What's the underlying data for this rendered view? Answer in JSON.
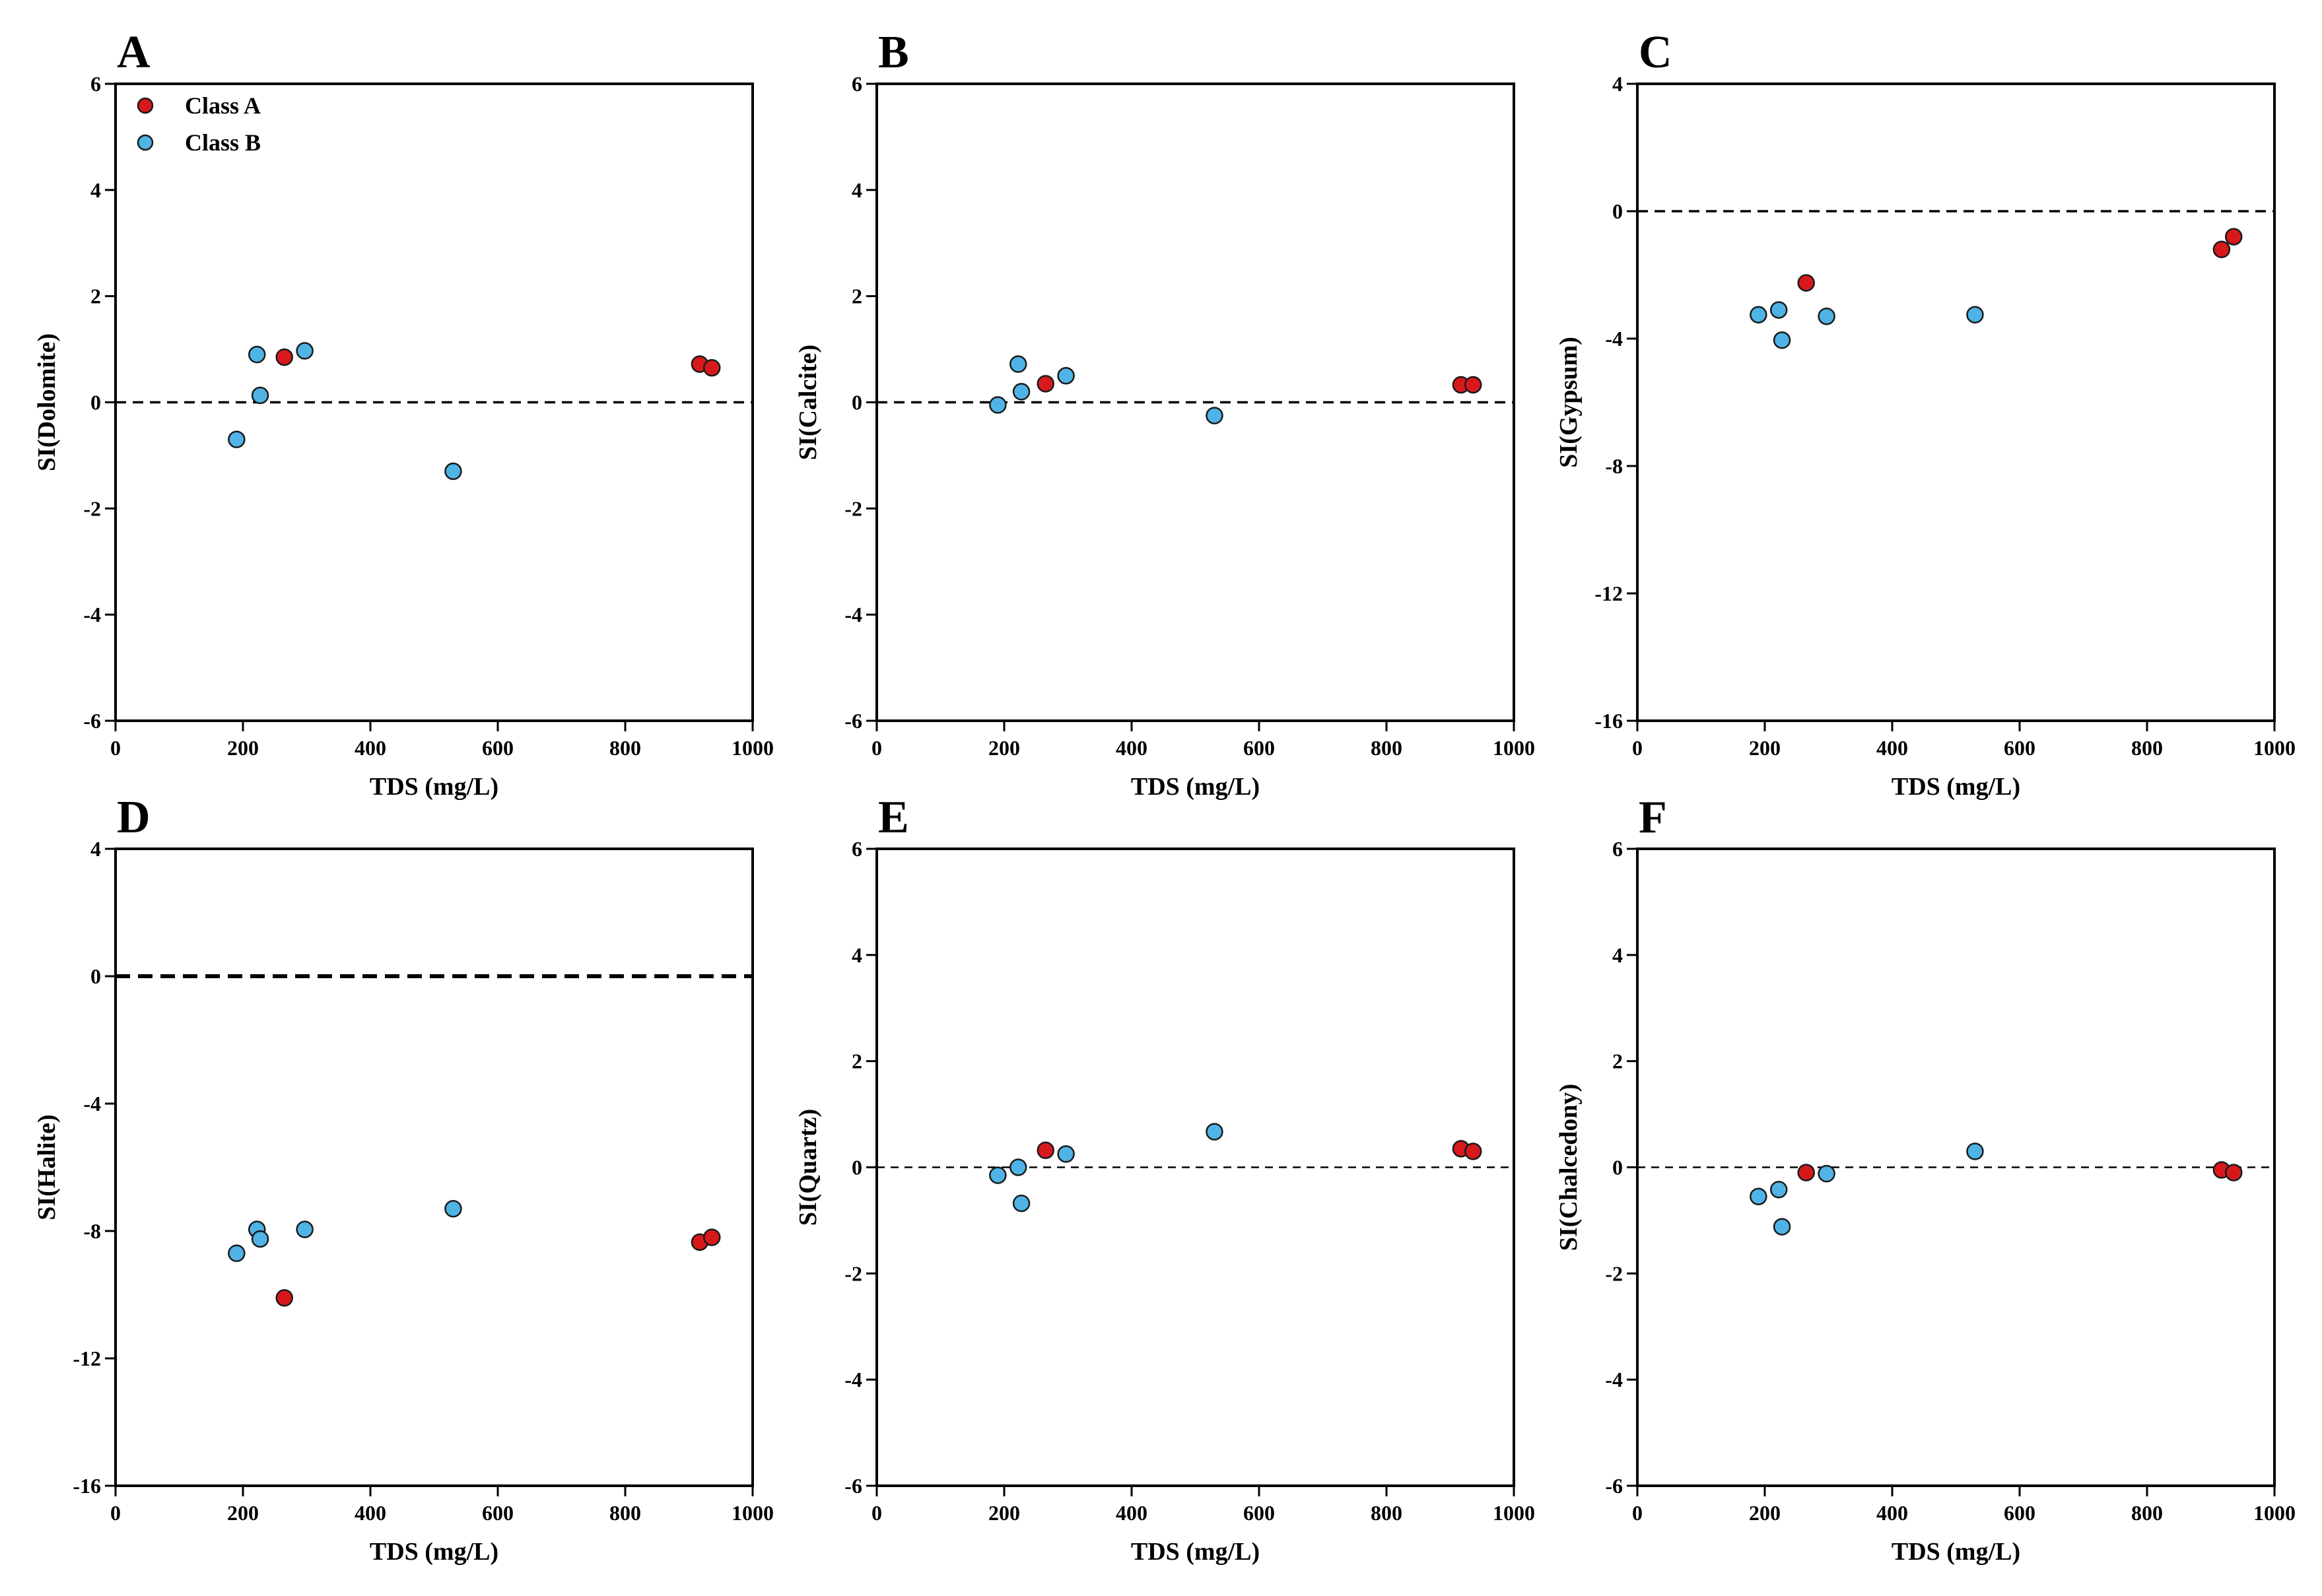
{
  "colors": {
    "class_a": "#d7191c",
    "class_b": "#4fb3e6",
    "axis": "#000000"
  },
  "legend": [
    {
      "label": "Class A",
      "color": "#d7191c"
    },
    {
      "label": "Class B",
      "color": "#4fb3e6"
    }
  ],
  "chart_data": [
    {
      "panel": "A",
      "type": "scatter",
      "xlabel": "TDS (mg/L)",
      "ylabel": "SI(Dolomite)",
      "xlim": [
        0,
        1000
      ],
      "ylim": [
        -6,
        6
      ],
      "xticks": [
        0,
        200,
        400,
        600,
        800,
        1000
      ],
      "yticks": [
        -6,
        -4,
        -2,
        0,
        2,
        4,
        6
      ],
      "reference_line": 0,
      "legend": true,
      "series": [
        {
          "name": "Class A",
          "x": [
            265,
            917,
            936
          ],
          "y": [
            0.85,
            0.72,
            0.65
          ]
        },
        {
          "name": "Class B",
          "x": [
            190,
            222,
            227,
            297,
            530
          ],
          "y": [
            -0.7,
            0.9,
            0.13,
            0.97,
            -1.3
          ]
        }
      ]
    },
    {
      "panel": "B",
      "type": "scatter",
      "xlabel": "TDS (mg/L)",
      "ylabel": "SI(Calcite)",
      "xlim": [
        0,
        1000
      ],
      "ylim": [
        -6,
        6
      ],
      "xticks": [
        0,
        200,
        400,
        600,
        800,
        1000
      ],
      "yticks": [
        -6,
        -4,
        -2,
        0,
        2,
        4,
        6
      ],
      "reference_line": 0,
      "legend": false,
      "series": [
        {
          "name": "Class A",
          "x": [
            265,
            917,
            936
          ],
          "y": [
            0.35,
            0.33,
            0.33
          ]
        },
        {
          "name": "Class B",
          "x": [
            190,
            222,
            227,
            297,
            530
          ],
          "y": [
            -0.05,
            0.72,
            0.2,
            0.5,
            -0.25
          ]
        }
      ]
    },
    {
      "panel": "C",
      "type": "scatter",
      "xlabel": "TDS (mg/L)",
      "ylabel": "SI(Gypsum)",
      "xlim": [
        0,
        1000
      ],
      "ylim": [
        -16,
        4
      ],
      "xticks": [
        0,
        200,
        400,
        600,
        800,
        1000
      ],
      "yticks": [
        -16,
        -12,
        -8,
        -4,
        0,
        4
      ],
      "reference_line": 0,
      "legend": false,
      "series": [
        {
          "name": "Class A",
          "x": [
            265,
            917,
            936
          ],
          "y": [
            -2.25,
            -1.2,
            -0.8
          ]
        },
        {
          "name": "Class B",
          "x": [
            190,
            222,
            227,
            297,
            530
          ],
          "y": [
            -3.25,
            -3.1,
            -4.05,
            -3.3,
            -3.25
          ]
        }
      ]
    },
    {
      "panel": "D",
      "type": "scatter",
      "xlabel": "TDS (mg/L)",
      "ylabel": "SI(Halite)",
      "xlim": [
        0,
        1000
      ],
      "ylim": [
        -16,
        4
      ],
      "xticks": [
        0,
        200,
        400,
        600,
        800,
        1000
      ],
      "yticks": [
        -16,
        -12,
        -8,
        -4,
        0,
        4
      ],
      "reference_line": 0,
      "legend": false,
      "series": [
        {
          "name": "Class A",
          "x": [
            265,
            917,
            936
          ],
          "y": [
            -10.1,
            -8.35,
            -8.2
          ]
        },
        {
          "name": "Class B",
          "x": [
            190,
            222,
            227,
            297,
            530
          ],
          "y": [
            -8.7,
            -7.95,
            -8.25,
            -7.95,
            -7.3
          ]
        }
      ]
    },
    {
      "panel": "E",
      "type": "scatter",
      "xlabel": "TDS (mg/L)",
      "ylabel": "SI(Quartz)",
      "xlim": [
        0,
        1000
      ],
      "ylim": [
        -6,
        6
      ],
      "xticks": [
        0,
        200,
        400,
        600,
        800,
        1000
      ],
      "yticks": [
        -6,
        -4,
        -2,
        0,
        2,
        4,
        6
      ],
      "reference_line": 0,
      "legend": false,
      "series": [
        {
          "name": "Class A",
          "x": [
            265,
            917,
            936
          ],
          "y": [
            0.32,
            0.35,
            0.3
          ]
        },
        {
          "name": "Class B",
          "x": [
            190,
            222,
            227,
            297,
            530
          ],
          "y": [
            -0.15,
            0.0,
            -0.68,
            0.25,
            0.67
          ]
        }
      ]
    },
    {
      "panel": "F",
      "type": "scatter",
      "xlabel": "TDS (mg/L)",
      "ylabel": "SI(Chalcedony)",
      "xlim": [
        0,
        1000
      ],
      "ylim": [
        -6,
        6
      ],
      "xticks": [
        0,
        200,
        400,
        600,
        800,
        1000
      ],
      "yticks": [
        -6,
        -4,
        -2,
        0,
        2,
        4,
        6
      ],
      "reference_line": 0,
      "legend": false,
      "series": [
        {
          "name": "Class A",
          "x": [
            265,
            917,
            936
          ],
          "y": [
            -0.1,
            -0.05,
            -0.1
          ]
        },
        {
          "name": "Class B",
          "x": [
            190,
            222,
            227,
            297,
            530
          ],
          "y": [
            -0.55,
            -0.42,
            -1.12,
            -0.12,
            0.3
          ]
        }
      ]
    }
  ]
}
